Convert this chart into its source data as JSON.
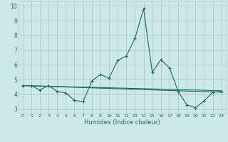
{
  "xlabel": "Humidex (Indice chaleur)",
  "xlim": [
    -0.5,
    23.5
  ],
  "ylim": [
    2.7,
    10.3
  ],
  "yticks": [
    3,
    4,
    5,
    6,
    7,
    8,
    9,
    10
  ],
  "xticks": [
    0,
    1,
    2,
    3,
    4,
    5,
    6,
    7,
    8,
    9,
    10,
    11,
    12,
    13,
    14,
    15,
    16,
    17,
    18,
    19,
    20,
    21,
    22,
    23
  ],
  "background_color": "#cce8e8",
  "grid_color": "#b0c8c8",
  "line_color": "#1a6b5a",
  "line1_x": [
    0,
    1,
    2,
    3,
    4,
    5,
    6,
    7,
    8,
    9,
    10,
    11,
    12,
    13,
    14,
    15,
    16,
    17,
    18,
    19,
    20,
    21,
    22,
    23
  ],
  "line1_y": [
    4.6,
    4.6,
    4.3,
    4.6,
    4.2,
    4.1,
    3.6,
    3.5,
    4.9,
    5.35,
    5.1,
    6.3,
    6.6,
    7.8,
    9.8,
    5.5,
    6.35,
    5.8,
    4.2,
    3.3,
    3.1,
    3.55,
    4.15,
    4.2
  ],
  "line2_x": [
    0,
    23
  ],
  "line2_y": [
    4.6,
    4.15
  ],
  "line3_x": [
    0,
    23
  ],
  "line3_y": [
    4.6,
    4.25
  ]
}
